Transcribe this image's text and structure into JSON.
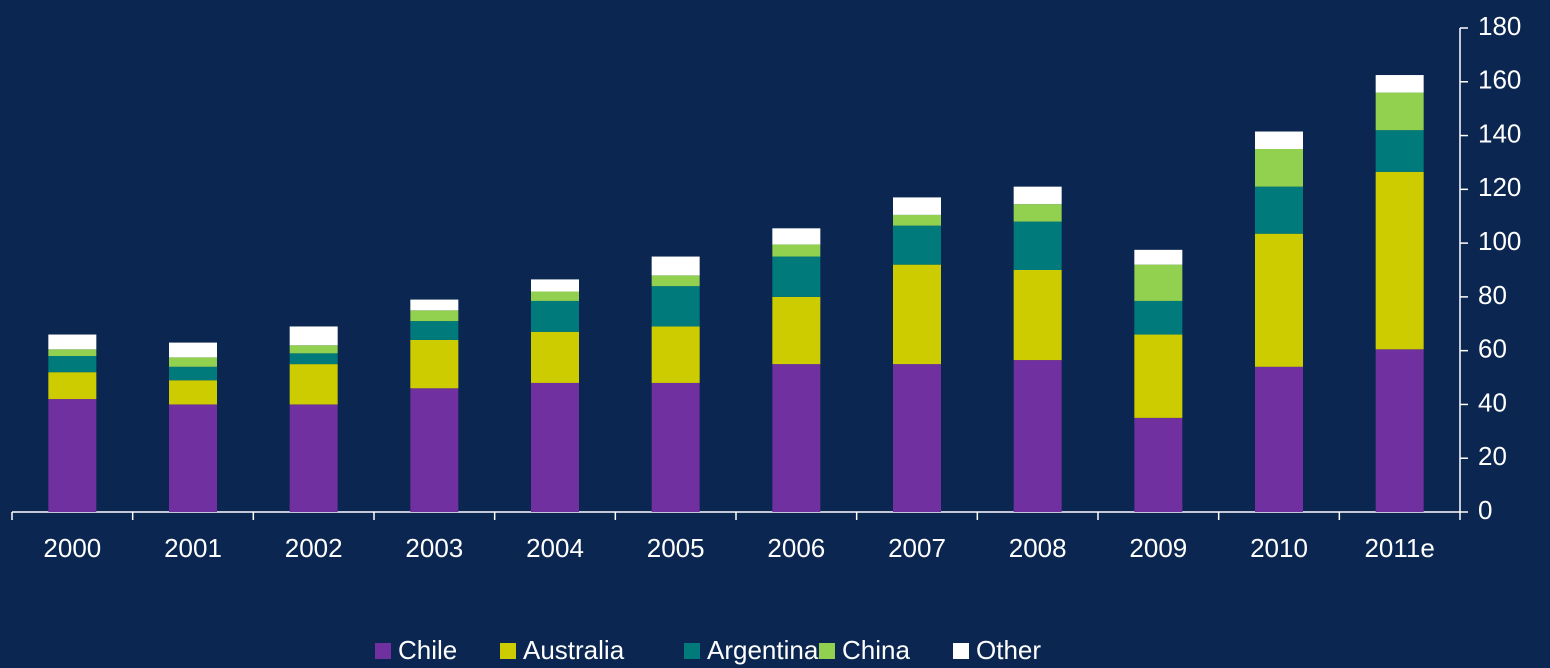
{
  "chart_data": {
    "type": "stacked_bar",
    "categories": [
      "2000",
      "2001",
      "2002",
      "2003",
      "2004",
      "2005",
      "2006",
      "2007",
      "2008",
      "2009",
      "2010",
      "2011e"
    ],
    "series": [
      {
        "name": "Chile",
        "color": "#7030a0",
        "values": [
          42,
          40,
          40,
          46,
          48,
          48,
          55,
          55,
          56.5,
          35,
          54,
          60.5
        ]
      },
      {
        "name": "Australia",
        "color": "#cccc00",
        "values": [
          10,
          9,
          15,
          18,
          19,
          21,
          25,
          37,
          33.5,
          31,
          49.5,
          66
        ]
      },
      {
        "name": "Argentina",
        "color": "#007a7a",
        "values": [
          6,
          5,
          4,
          7,
          11.5,
          15,
          15,
          14.5,
          18,
          12.5,
          17.5,
          15.5
        ]
      },
      {
        "name": "China",
        "color": "#92d050",
        "values": [
          2.5,
          3.5,
          3,
          4,
          3.5,
          4,
          4.5,
          4,
          6.5,
          13.5,
          14,
          14
        ]
      },
      {
        "name": "Other",
        "color": "#ffffff",
        "values": [
          5.5,
          5.5,
          7,
          4,
          4.5,
          7,
          6,
          6.5,
          6.5,
          5.5,
          6.5,
          6.5
        ]
      }
    ],
    "ylim": [
      0,
      180
    ],
    "yticks": [
      0,
      20,
      40,
      60,
      80,
      100,
      120,
      140,
      160,
      180
    ],
    "y_axis_side": "right",
    "legend": "bottom"
  }
}
